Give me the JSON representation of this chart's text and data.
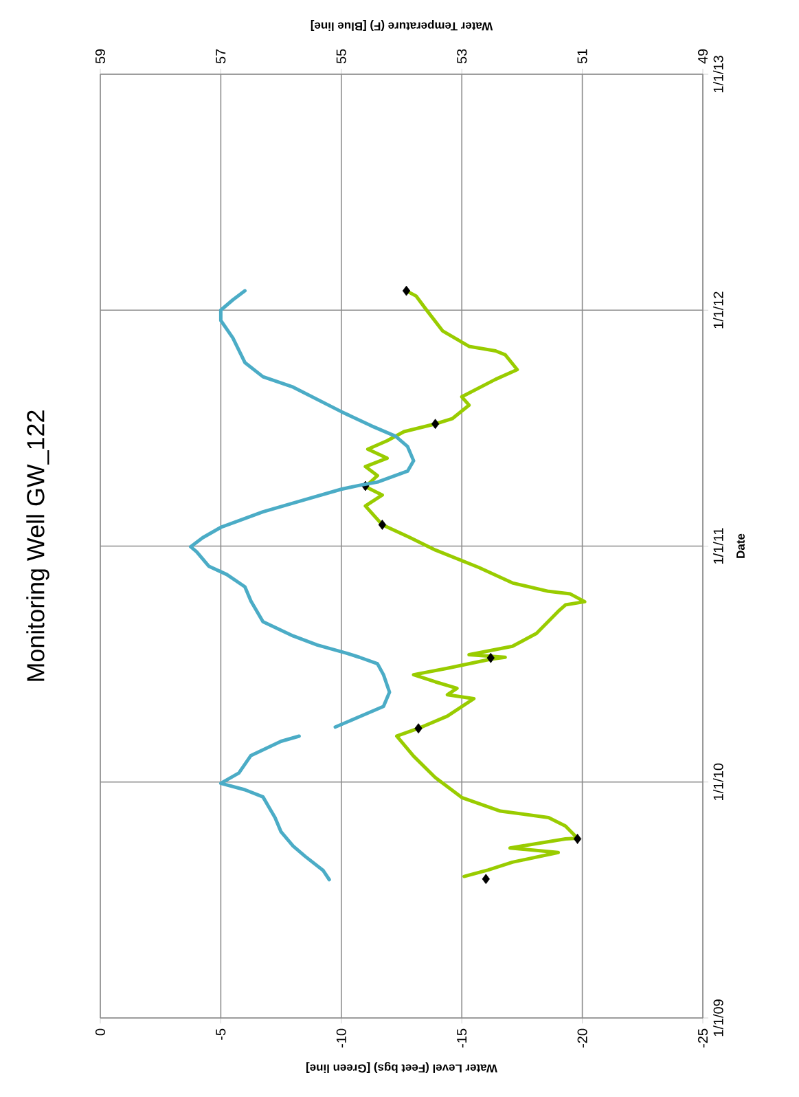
{
  "chart_data": {
    "type": "line",
    "orientation": "horizontal",
    "title": "Monitoring Well GW_122",
    "ylabel": "Date",
    "xlabel": "Water Level (Feet bgs) [Green line]",
    "x2label": "Water Temperature (F) [Blue line]",
    "ylim": [
      "2009-01-01",
      "2013-01-01"
    ],
    "yticks": [
      {
        "value": "2009-01-01",
        "label": "1/1/09"
      },
      {
        "value": "2010-01-01",
        "label": "1/1/10"
      },
      {
        "value": "2011-01-01",
        "label": "1/1/11"
      },
      {
        "value": "2012-01-01",
        "label": "1/1/12"
      },
      {
        "value": "2013-01-01",
        "label": "1/1/13"
      }
    ],
    "xlim": [
      0,
      -25
    ],
    "xticks": [
      0,
      -5,
      -10,
      -15,
      -20,
      -25
    ],
    "x2lim": [
      59,
      49
    ],
    "x2ticks": [
      59,
      57,
      55,
      53,
      51,
      49
    ],
    "grid": true,
    "series": [
      {
        "color": "#99cc00",
        "marker": "none",
        "x": [
          "2009-08-08",
          "2009-08-18",
          "2009-08-30",
          "2009-09-14",
          "2009-09-21",
          "2009-10-05",
          "2009-10-06",
          "2009-10-25",
          "2009-11-07",
          "2009-11-17",
          "2009-12-08",
          "2010-01-08",
          "2010-02-10",
          "2010-03-13",
          "2010-03-25",
          "2010-04-13",
          "2010-05-10",
          "2010-05-16",
          "2010-05-26",
          "2010-06-05",
          "2010-06-16",
          "2010-06-26",
          "2010-07-10",
          "2010-07-13",
          "2010-07-17",
          "2010-07-30",
          "2010-08-19",
          "2010-09-22",
          "2010-10-02",
          "2010-10-07",
          "2010-10-19",
          "2010-10-23",
          "2010-11-05",
          "2010-11-29",
          "2010-12-26",
          "2011-01-15",
          "2011-02-03",
          "2011-03-04",
          "2011-03-21",
          "2011-04-03",
          "2011-04-20",
          "2011-05-04",
          "2011-05-17",
          "2011-05-31",
          "2011-06-13",
          "2011-06-27",
          "2011-07-09",
          "2011-07-17",
          "2011-08-07",
          "2011-08-20",
          "2011-09-16",
          "2011-10-01",
          "2011-10-24",
          "2011-10-30",
          "2011-11-06",
          "2011-11-30",
          "2012-01-03",
          "2012-01-23",
          "2012-01-31"
        ],
        "values": [
          -15.1,
          -16.1,
          -17.1,
          -19.0,
          -17.0,
          -19.3,
          -19.8,
          -19.3,
          -18.6,
          -16.6,
          -15.0,
          -13.9,
          -13.0,
          -12.3,
          -13.2,
          -14.4,
          -15.5,
          -14.4,
          -14.8,
          -13.9,
          -13.0,
          -14.4,
          -16.2,
          -16.8,
          -15.3,
          -17.1,
          -18.1,
          -19.0,
          -19.3,
          -20.1,
          -19.5,
          -18.6,
          -17.1,
          -15.7,
          -13.9,
          -12.8,
          -11.7,
          -11.0,
          -11.7,
          -11.0,
          -11.5,
          -11.0,
          -11.9,
          -11.1,
          -11.9,
          -12.6,
          -13.9,
          -14.6,
          -15.3,
          -15.0,
          -16.4,
          -17.3,
          -16.8,
          -16.4,
          -15.3,
          -14.2,
          -13.5,
          -13.1,
          -12.7
        ]
      },
      {
        "type": "scatter",
        "marker": "diamond",
        "color": "#000000",
        "x": [
          "2009-08-04",
          "2009-10-05",
          "2010-03-25",
          "2010-07-12",
          "2011-02-03",
          "2011-04-04",
          "2011-07-09",
          "2012-01-31"
        ],
        "values": [
          -16.0,
          -19.8,
          -13.2,
          -16.2,
          -11.7,
          -11.0,
          -13.9,
          -12.7
        ]
      },
      {
        "axis": "x2",
        "color": "#4bacc6",
        "marker": "none",
        "x": [
          "2009-08-03",
          "2009-08-17",
          "2009-09-08",
          "2009-09-24",
          "2009-10-16",
          "2009-11-07",
          "2009-11-23",
          "2009-12-09",
          "2009-12-20",
          "2009-12-30",
          "2010-01-15",
          "2010-02-11",
          "2010-03-05",
          "2010-03-13",
          "2010-03-20",
          "2010-03-27",
          "2010-04-12",
          "2010-04-28",
          "2010-05-20",
          "2010-06-16",
          "2010-07-03",
          "2010-07-13",
          "2010-07-19",
          "2010-08-01",
          "2010-08-15",
          "2010-09-06",
          "2010-10-08",
          "2010-10-30",
          "2010-11-18",
          "2010-12-01",
          "2010-12-23",
          "2010-12-31",
          "2011-01-14",
          "2011-01-30",
          "2011-02-23",
          "2011-03-14",
          "2011-03-30",
          "2011-04-05",
          "2011-04-10",
          "2011-04-27",
          "2011-05-13",
          "2011-06-04",
          "2011-06-20",
          "2011-07-06",
          "2011-07-28",
          "2011-09-04",
          "2011-09-20",
          "2011-10-12",
          "2011-11-19",
          "2011-12-16",
          "2012-01-01",
          "2012-01-17",
          "2012-01-31"
        ],
        "values": [
          55.2,
          55.3,
          55.6,
          55.8,
          56.0,
          56.1,
          56.2,
          56.3,
          56.6,
          57.0,
          56.7,
          56.5,
          56.0,
          55.7,
          null,
          55.1,
          54.7,
          54.3,
          54.2,
          54.3,
          54.4,
          54.7,
          54.9,
          55.4,
          55.8,
          56.3,
          56.5,
          56.6,
          56.9,
          57.2,
          57.4,
          57.5,
          57.3,
          57.0,
          56.3,
          55.6,
          55.0,
          54.7,
          54.4,
          53.9,
          53.8,
          53.9,
          54.1,
          54.5,
          55.0,
          55.8,
          56.3,
          56.6,
          56.8,
          57.0,
          57.0,
          56.8,
          56.6
        ]
      }
    ]
  }
}
